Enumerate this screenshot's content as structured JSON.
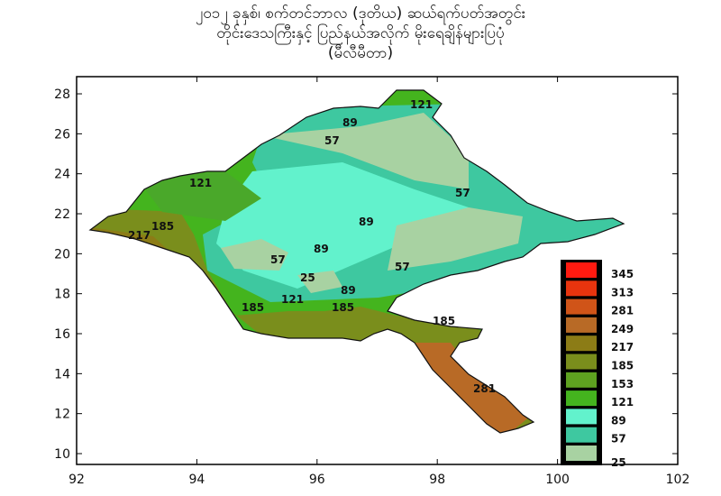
{
  "title": {
    "line1": "၂၀၁၂ ခုနှစ်၊ စက်တင်ဘာလ (ဒုတိယ) ဆယ်ရက်ပတ်အတွင်း",
    "line2": "တိုင်းဒေသကြီးနှင့် ပြည်နယ်အလိုက် မိုးရေချိန်များပြပုံ",
    "line3": "(မီလီမီတာ)"
  },
  "axes": {
    "x_ticks": [
      "92",
      "94",
      "96",
      "98",
      "100",
      "102"
    ],
    "y_ticks": [
      "10",
      "12",
      "14",
      "16",
      "18",
      "20",
      "22",
      "24",
      "26",
      "28"
    ]
  },
  "legend": {
    "items": [
      {
        "value": "345",
        "color": "#ff1a10"
      },
      {
        "value": "313",
        "color": "#e8340e"
      },
      {
        "value": "281",
        "color": "#d05418"
      },
      {
        "value": "249",
        "color": "#b86a26"
      },
      {
        "value": "217",
        "color": "#8c7c16"
      },
      {
        "value": "185",
        "color": "#7a8e1c"
      },
      {
        "value": "153",
        "color": "#5ea220"
      },
      {
        "value": "121",
        "color": "#44b41e"
      },
      {
        "value": "89",
        "color": "#62f2cc"
      },
      {
        "value": "57",
        "color": "#3ec8a0"
      },
      {
        "value": "25",
        "color": "#a8d2a2"
      }
    ]
  },
  "contour_labels": [
    "121",
    "89",
    "57",
    "57",
    "121",
    "89",
    "185",
    "217",
    "89",
    "57",
    "57",
    "25",
    "121",
    "89",
    "185",
    "185",
    "185",
    "281"
  ]
}
